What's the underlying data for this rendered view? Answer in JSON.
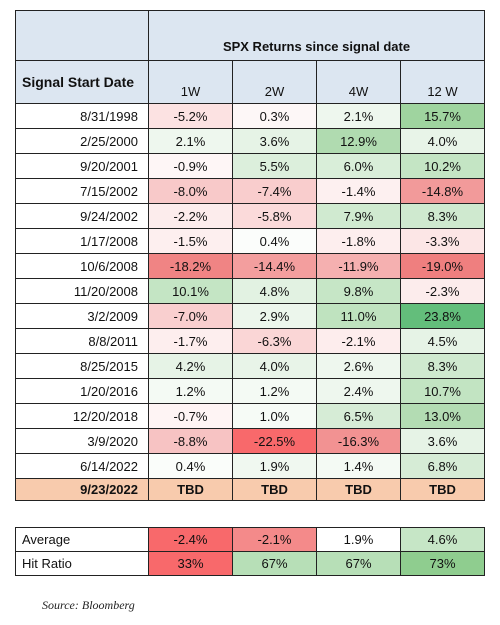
{
  "header": {
    "group_title": "SPX Returns since signal date",
    "row_header": "Signal Start Date",
    "columns": [
      "1W",
      "2W",
      "4W",
      "12 W"
    ]
  },
  "table": {
    "rows": [
      [
        "8/31/1998",
        "-5.2%",
        "0.3%",
        "2.1%",
        "15.7%"
      ],
      [
        "2/25/2000",
        "2.1%",
        "3.6%",
        "12.9%",
        "4.0%"
      ],
      [
        "9/20/2001",
        "-0.9%",
        "5.5%",
        "6.0%",
        "10.2%"
      ],
      [
        "7/15/2002",
        "-8.0%",
        "-7.4%",
        "-1.4%",
        "-14.8%"
      ],
      [
        "9/24/2002",
        "-2.2%",
        "-5.8%",
        "7.9%",
        "8.3%"
      ],
      [
        "1/17/2008",
        "-1.5%",
        "0.4%",
        "-1.8%",
        "-3.3%"
      ],
      [
        "10/6/2008",
        "-18.2%",
        "-14.4%",
        "-11.9%",
        "-19.0%"
      ],
      [
        "11/20/2008",
        "10.1%",
        "4.8%",
        "9.8%",
        "-2.3%"
      ],
      [
        "3/2/2009",
        "-7.0%",
        "2.9%",
        "11.0%",
        "23.8%"
      ],
      [
        "8/8/2011",
        "-1.7%",
        "-6.3%",
        "-2.1%",
        "4.5%"
      ],
      [
        "8/25/2015",
        "4.2%",
        "4.0%",
        "2.6%",
        "8.3%"
      ],
      [
        "1/20/2016",
        "1.2%",
        "1.2%",
        "2.4%",
        "10.7%"
      ],
      [
        "12/20/2018",
        "-0.7%",
        "1.0%",
        "6.5%",
        "13.0%"
      ],
      [
        "3/9/2020",
        "-8.8%",
        "-22.5%",
        "-16.3%",
        "3.6%"
      ],
      [
        "6/14/2022",
        "0.4%",
        "1.9%",
        "1.4%",
        "6.8%"
      ]
    ],
    "colors": [
      [
        "#fce2e2",
        "#fdf7f7",
        "#eef7ee",
        "#9fd49f"
      ],
      [
        "#eef7ee",
        "#e6f3e6",
        "#b0dbb0",
        "#e8f4e8"
      ],
      [
        "#fef6f6",
        "#dcefdc",
        "#d9eed9",
        "#c4e5c4"
      ],
      [
        "#f8c9c9",
        "#f9cdcd",
        "#fdf0f0",
        "#f29a9a"
      ],
      [
        "#fcecec",
        "#fbdada",
        "#d0ead0",
        "#cfe9cf"
      ],
      [
        "#fdefef",
        "#fbfdfb",
        "#fdeeee",
        "#fce6e6"
      ],
      [
        "#f08484",
        "#f39e9e",
        "#f5b0b0",
        "#ef7f7f"
      ],
      [
        "#c4e5c4",
        "#e2f2e2",
        "#c6e6c6",
        "#fcecec"
      ],
      [
        "#f9cfcf",
        "#ecf6ec",
        "#bfe3bf",
        "#63be7b"
      ],
      [
        "#fdeeee",
        "#fad6d6",
        "#fdeded",
        "#e6f3e6"
      ],
      [
        "#e6f3e6",
        "#e8f4e8",
        "#eef7ee",
        "#cfe9cf"
      ],
      [
        "#f4faf4",
        "#f4faf4",
        "#eef7ee",
        "#c2e4c2"
      ],
      [
        "#fef4f4",
        "#f6fbf6",
        "#d6ecd6",
        "#b3dcb3"
      ],
      [
        "#f7c3c3",
        "#f8696b",
        "#f29292",
        "#e6f3e6"
      ],
      [
        "#fafdfa",
        "#f0f8f0",
        "#f4faf4",
        "#d6ecd6"
      ]
    ]
  },
  "tbd_row": [
    "9/23/2022",
    "TBD",
    "TBD",
    "TBD",
    "TBD"
  ],
  "summary": {
    "rows": [
      [
        "Average",
        "-2.4%",
        "-2.1%",
        "1.9%",
        "4.6%"
      ],
      [
        "Hit Ratio",
        "33%",
        "67%",
        "67%",
        "73%"
      ]
    ],
    "colors": [
      [
        "#f8696b",
        "#f48a8a",
        "#ffffff",
        "#c6e6c6"
      ],
      [
        "#f8696b",
        "#b7dfb7",
        "#b7dfb7",
        "#8fcd8f"
      ]
    ]
  },
  "source": "Source: Bloomberg"
}
